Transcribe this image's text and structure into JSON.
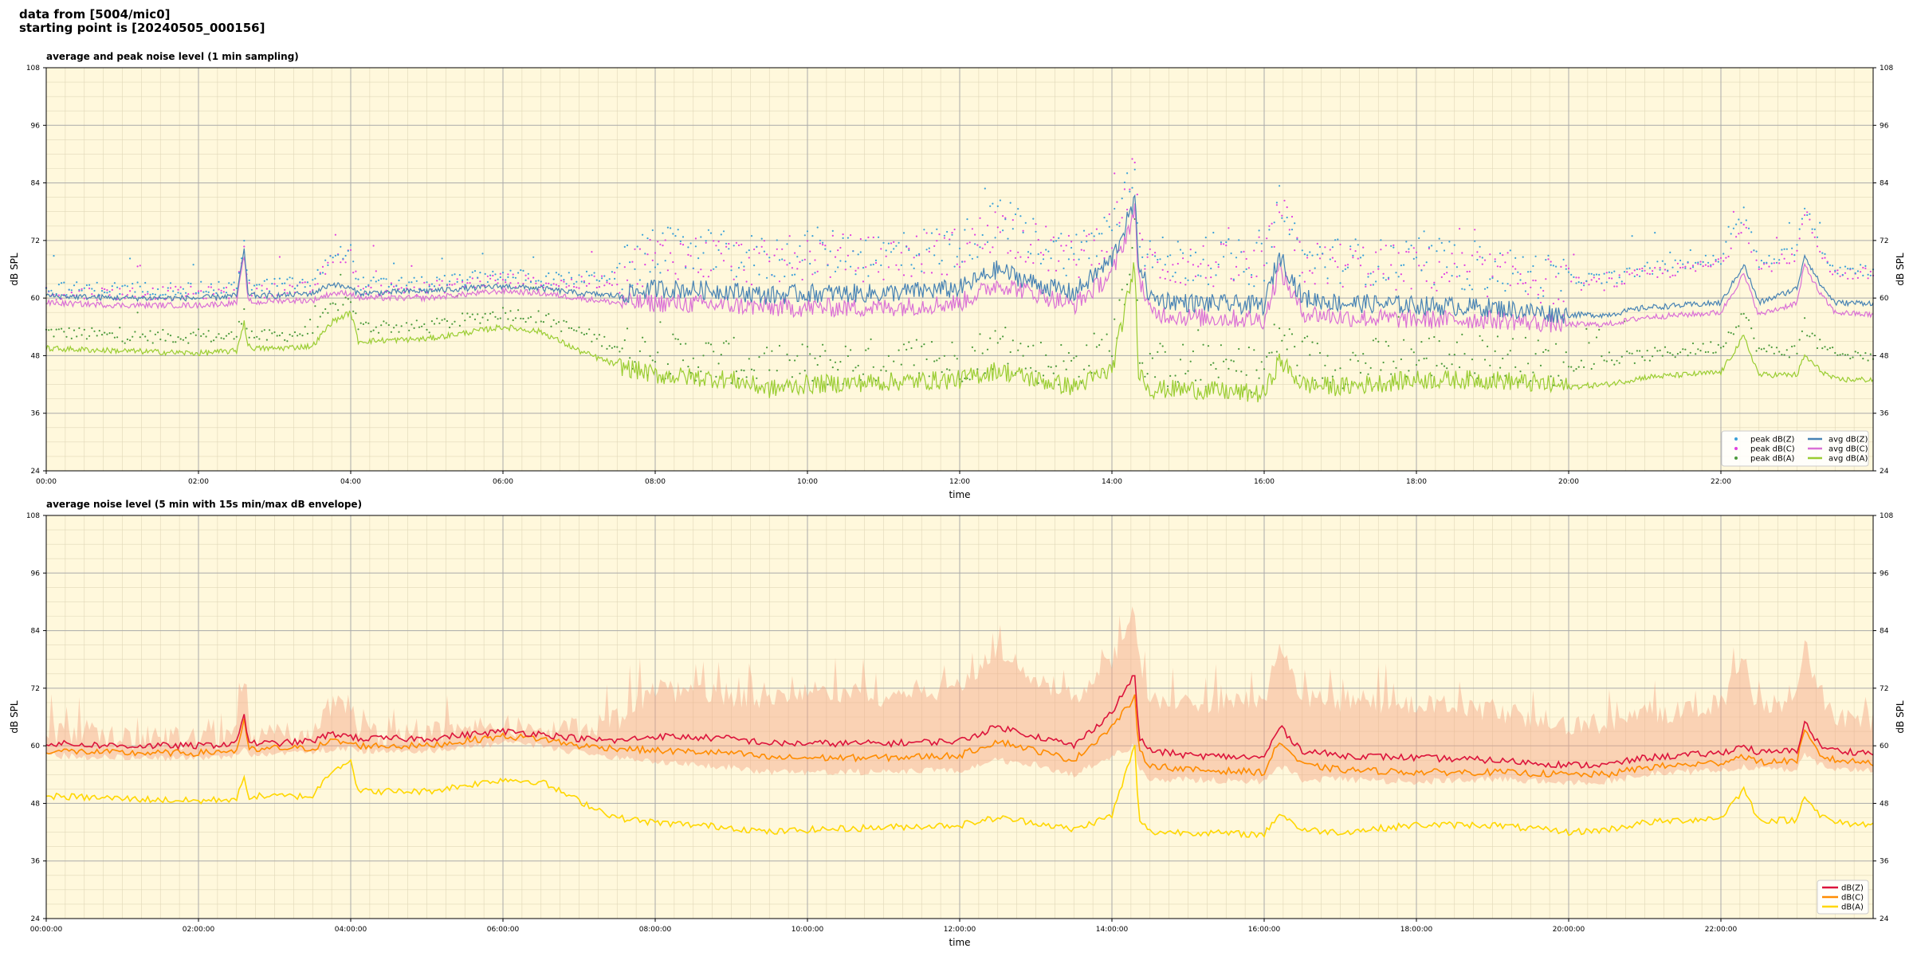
{
  "header": {
    "line1": "data from [5004/mic0]",
    "line2": "starting point is [20240505_000156]"
  },
  "colors": {
    "panel_bg": "#fff8dc",
    "grid_major": "#aaaaaa",
    "grid_minor": "#e0d8b8",
    "peak_z": "#3aa0d8",
    "peak_c": "#e040e0",
    "peak_a": "#4c9a3c",
    "avg_z": "#4682b4",
    "avg_c": "#da70d6",
    "avg_a": "#9acd32",
    "dbz": "#dc143c",
    "dbc": "#ff8c00",
    "dba": "#ffd700",
    "envelope": "#f4a582"
  },
  "chart_data": [
    {
      "type": "line",
      "title": "average and peak noise level (1 min sampling)",
      "xlabel": "time",
      "ylabel": "dB SPL",
      "ylabel_right": "dB SPL",
      "xlim": [
        0,
        24
      ],
      "ylim": [
        24,
        108
      ],
      "xticks": [
        "00:00",
        "02:00",
        "04:00",
        "06:00",
        "08:00",
        "10:00",
        "12:00",
        "14:00",
        "16:00",
        "18:00",
        "20:00",
        "22:00"
      ],
      "yticks": [
        24,
        36,
        48,
        60,
        72,
        84,
        96,
        108
      ],
      "grid": true,
      "legend_position": "lower-right",
      "legend": [
        {
          "label": "peak dB(Z)",
          "kind": "dot",
          "color": "#3aa0d8"
        },
        {
          "label": "peak dB(C)",
          "kind": "dot",
          "color": "#e040e0"
        },
        {
          "label": "peak dB(A)",
          "kind": "dot",
          "color": "#4c9a3c"
        },
        {
          "label": "avg dB(Z)",
          "kind": "line",
          "color": "#4682b4"
        },
        {
          "label": "avg dB(C)",
          "kind": "line",
          "color": "#da70d6"
        },
        {
          "label": "avg dB(A)",
          "kind": "line",
          "color": "#9acd32"
        }
      ],
      "x_hours": [
        0,
        1,
        2,
        2.5,
        2.6,
        2.65,
        2.75,
        3,
        3.5,
        3.75,
        4,
        4.1,
        5,
        6,
        6.5,
        7,
        7.5,
        8,
        9,
        9.5,
        10,
        11,
        12,
        12.5,
        13,
        13.5,
        14,
        14.3,
        14.35,
        14.5,
        15,
        16,
        16.2,
        16.5,
        17,
        18,
        19,
        20,
        20.5,
        21,
        21.5,
        22,
        22.3,
        22.5,
        23,
        23.1,
        23.3,
        23.5,
        24
      ],
      "series": [
        {
          "name": "avg dB(Z)",
          "values": [
            60.5,
            60,
            60,
            60.5,
            70,
            61,
            60.5,
            60.5,
            61,
            63,
            62,
            61,
            61.5,
            62.5,
            62,
            61,
            60.5,
            62,
            61.5,
            60.5,
            61,
            61,
            62,
            66,
            63,
            61,
            68,
            80,
            68,
            60,
            59,
            58.5,
            69,
            60,
            59,
            58.5,
            58,
            56.5,
            56.5,
            58,
            58.5,
            59,
            67,
            59,
            62,
            69,
            63,
            59,
            59
          ]
        },
        {
          "name": "avg dB(C)",
          "values": [
            59,
            58.5,
            58.5,
            59,
            69,
            59.5,
            59,
            59.5,
            59.5,
            61,
            61,
            60,
            60,
            61.5,
            61,
            60,
            59,
            59,
            58.5,
            58,
            58,
            58,
            59,
            63,
            61,
            58.5,
            65,
            78,
            65,
            57,
            56,
            55.5,
            66,
            57,
            56,
            55.5,
            55.5,
            54.5,
            54.5,
            56,
            56.5,
            57,
            65,
            56.5,
            59,
            67,
            61,
            57,
            56.5
          ]
        },
        {
          "name": "avg dB(A)",
          "values": [
            49.5,
            49,
            48.5,
            49,
            55,
            50,
            49.5,
            49.5,
            50,
            55,
            57,
            51,
            51.5,
            54,
            53,
            49,
            46,
            44,
            43,
            41,
            42,
            42.5,
            43,
            45,
            43,
            41.5,
            45,
            67,
            45,
            41,
            41,
            40,
            47,
            42,
            41.5,
            43,
            43,
            41.5,
            42,
            43.5,
            44,
            44.5,
            52,
            44,
            44,
            48,
            45,
            43,
            43
          ]
        },
        {
          "name": "peak dB(Z)",
          "values": [
            62,
            62,
            62,
            62,
            73,
            63,
            62,
            63,
            63,
            69,
            70,
            63,
            63,
            65,
            64,
            64,
            65,
            70,
            69,
            68,
            70,
            69,
            71,
            76,
            72,
            69,
            75,
            88,
            75,
            68,
            68,
            67,
            80,
            68,
            68,
            67,
            66,
            64,
            64,
            66,
            67,
            68,
            78,
            67,
            70,
            80,
            71,
            66,
            66
          ]
        },
        {
          "name": "peak dB(C)",
          "values": [
            61,
            61,
            61,
            61,
            72,
            62,
            61,
            62,
            62,
            68,
            69,
            62,
            62,
            64,
            63,
            63,
            64,
            69,
            68,
            67,
            69,
            68,
            70,
            75,
            71,
            68,
            74,
            86,
            74,
            67,
            67,
            66,
            79,
            67,
            67,
            66,
            65,
            63,
            63,
            65,
            66,
            67,
            76,
            66,
            69,
            78,
            70,
            65,
            65
          ]
        },
        {
          "name": "peak dB(A)",
          "values": [
            53,
            52,
            52,
            52,
            58,
            53,
            52,
            52,
            53,
            58,
            60,
            54,
            54,
            57,
            56,
            53,
            50,
            48,
            47,
            45,
            46,
            47,
            47,
            50,
            47,
            46,
            50,
            74,
            50,
            46,
            46,
            45,
            53,
            47,
            46,
            48,
            48,
            46,
            47,
            48,
            49,
            50,
            57,
            49,
            49,
            54,
            50,
            48,
            48
          ]
        }
      ]
    },
    {
      "type": "line",
      "title": "average noise level (5 min with 15s min/max dB envelope)",
      "xlabel": "time",
      "ylabel": "dB SPL",
      "ylabel_right": "dB SPL",
      "xlim": [
        0,
        24
      ],
      "ylim": [
        24,
        108
      ],
      "xticks": [
        "00:00:00",
        "02:00:00",
        "04:00:00",
        "06:00:00",
        "08:00:00",
        "10:00:00",
        "12:00:00",
        "14:00:00",
        "16:00:00",
        "18:00:00",
        "20:00:00",
        "22:00:00"
      ],
      "yticks": [
        24,
        36,
        48,
        60,
        72,
        84,
        96,
        108
      ],
      "grid": true,
      "legend_position": "lower-right",
      "legend": [
        {
          "label": "dB(Z)",
          "kind": "line",
          "color": "#dc143c"
        },
        {
          "label": "dB(C)",
          "kind": "line",
          "color": "#ff8c00"
        },
        {
          "label": "dB(A)",
          "kind": "line",
          "color": "#ffd700"
        }
      ],
      "x_hours": [
        0,
        1,
        2,
        2.5,
        2.6,
        2.65,
        2.75,
        3,
        3.5,
        3.75,
        4,
        4.1,
        5,
        6,
        6.5,
        7,
        7.5,
        8,
        9,
        9.5,
        10,
        11,
        12,
        12.5,
        13,
        13.5,
        14,
        14.3,
        14.35,
        14.5,
        15,
        16,
        16.2,
        16.5,
        17,
        18,
        19,
        20,
        20.5,
        21,
        21.5,
        22,
        22.3,
        22.5,
        23,
        23.1,
        23.3,
        23.5,
        24
      ],
      "series": [
        {
          "name": "dB(Z)",
          "values": [
            60.5,
            60,
            60,
            60.5,
            67,
            61,
            60.5,
            60.5,
            61,
            62.5,
            62,
            61.5,
            61.5,
            63,
            62.5,
            61.5,
            61,
            62,
            61.5,
            60.5,
            60.5,
            60.5,
            61,
            64,
            62,
            60,
            67,
            75,
            62,
            59,
            58,
            57.5,
            64,
            59,
            58,
            57.5,
            57,
            56,
            56,
            57.5,
            58,
            58.5,
            60,
            58.5,
            59,
            65,
            60,
            59,
            58.5
          ]
        },
        {
          "name": "dB(C)",
          "values": [
            59,
            58.5,
            58.5,
            59,
            65,
            59.5,
            59,
            59.5,
            59.5,
            61,
            60.5,
            60,
            60,
            62,
            61.5,
            60,
            59.5,
            59,
            58.5,
            57.5,
            57.5,
            57.5,
            58,
            61,
            59,
            57,
            64,
            70,
            59,
            56,
            55,
            54.5,
            61,
            56,
            55,
            54.5,
            54.5,
            54,
            54,
            55.5,
            56,
            56.5,
            58,
            56.5,
            57,
            63,
            58,
            57,
            56.5
          ]
        },
        {
          "name": "dB(A)",
          "values": [
            49.5,
            49,
            48.5,
            49,
            53,
            49.5,
            49.5,
            49.5,
            49.5,
            55,
            57,
            50.5,
            50.5,
            53,
            52.5,
            48.5,
            45,
            44,
            43,
            42,
            42.5,
            43,
            43.5,
            45,
            44,
            42.5,
            45.5,
            60,
            45,
            42,
            42,
            41.5,
            46,
            42.5,
            42,
            43.5,
            43.5,
            42,
            42.5,
            44,
            44.5,
            45,
            51,
            44.5,
            44.5,
            50,
            45.5,
            44,
            43.5
          ]
        },
        {
          "name": "envelope max",
          "values": [
            63,
            62,
            62,
            62,
            74,
            63,
            62,
            63,
            63,
            69,
            70,
            63,
            63,
            65,
            64,
            64,
            66,
            72,
            71,
            70,
            72,
            71,
            73,
            80,
            75,
            71,
            78,
            90,
            78,
            70,
            70,
            69,
            82,
            70,
            70,
            69,
            68,
            65,
            65,
            67,
            68,
            69,
            78,
            68,
            70,
            82,
            72,
            67,
            66
          ]
        },
        {
          "name": "envelope min",
          "values": [
            58,
            57.5,
            57.5,
            58,
            60,
            58.5,
            58,
            58.5,
            58.5,
            59.5,
            59.5,
            59,
            59,
            60.5,
            60,
            58.5,
            57.5,
            56.5,
            55.5,
            54.5,
            54.5,
            54.5,
            55,
            57,
            56,
            54,
            58,
            60,
            55,
            53,
            53,
            52.5,
            56,
            53,
            53,
            52.5,
            53,
            52.5,
            52.5,
            54,
            54.5,
            55,
            55.5,
            55,
            55,
            58,
            56,
            55,
            55
          ]
        }
      ]
    }
  ]
}
